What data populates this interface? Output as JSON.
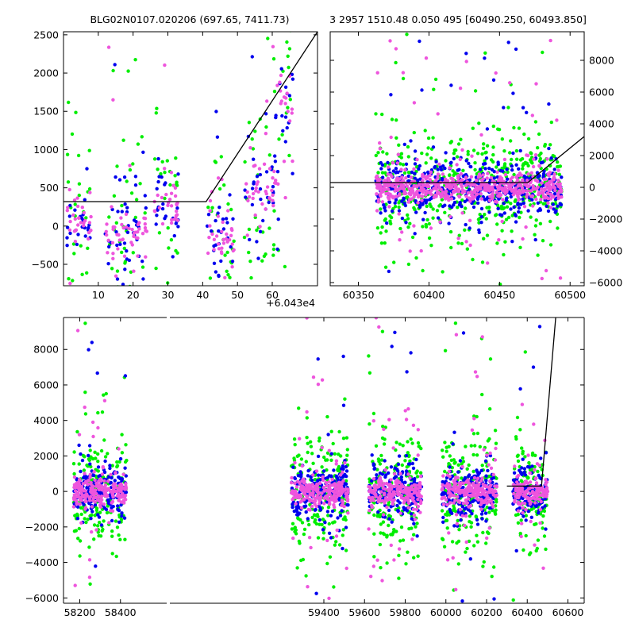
{
  "title": {
    "left": "BLG02N0107.020206 (697.65, 7411.73)",
    "right": "3 2957 1510.48 0.050 495 [60490.250, 60493.850]"
  },
  "colors": {
    "series_green": "#00ee00",
    "series_blue": "#0000ee",
    "series_magenta": "#ee55dd",
    "axes": "#000000",
    "model": "#000000"
  },
  "chart_data": [
    {
      "id": "zoom",
      "type": "scatter",
      "xlim": [
        0,
        73
      ],
      "ylim": [
        -780,
        2540
      ],
      "x_offset_label": "+6.043e4",
      "x_ticks": [
        10,
        20,
        30,
        40,
        50,
        60
      ],
      "x_tick_labels": [
        "10",
        "20",
        "30",
        "40",
        "50",
        "60"
      ],
      "y_ticks": [
        -500,
        0,
        500,
        1000,
        1500,
        2000,
        2500
      ],
      "y_tick_labels": [
        "−500",
        "0",
        "500",
        "1000",
        "1500",
        "2000",
        "2500"
      ],
      "y_axis_side": "left",
      "model_line": [
        [
          0,
          320
        ],
        [
          41,
          320
        ],
        [
          73,
          2540
        ]
      ],
      "observing_groups": [
        {
          "x_range": [
            1,
            8
          ],
          "y_center": 100,
          "y_spread": 600
        },
        {
          "x_range": [
            12,
            24
          ],
          "y_center": -80,
          "y_spread": 600
        },
        {
          "x_range": [
            26,
            33
          ],
          "y_center": 240,
          "y_spread": 520
        },
        {
          "x_range": [
            41,
            49
          ],
          "y_center": -160,
          "y_spread": 560
        },
        {
          "x_range": [
            52,
            62
          ],
          "y_center": 470,
          "y_spread": 850
        },
        {
          "x_range": [
            62,
            66
          ],
          "y_center": 1700,
          "y_spread": 700
        }
      ],
      "series_colors": [
        "#00ee00",
        "#0000ee",
        "#ee55dd"
      ]
    },
    {
      "id": "season",
      "type": "scatter",
      "xlim": [
        60330,
        60510
      ],
      "ylim": [
        -6200,
        9800
      ],
      "x_ticks": [
        60350,
        60400,
        60450,
        60500
      ],
      "x_tick_labels": [
        "60350",
        "60400",
        "60450",
        "60500"
      ],
      "y_ticks": [
        -6000,
        -4000,
        -2000,
        0,
        2000,
        4000,
        6000,
        8000
      ],
      "y_tick_labels": [
        "−6000",
        "−4000",
        "−2000",
        "0",
        "2000",
        "4000",
        "6000",
        "8000"
      ],
      "y_axis_side": "right",
      "model_line": [
        [
          60330,
          300
        ],
        [
          60470,
          300
        ],
        [
          60510,
          3200
        ]
      ],
      "observing_groups": [
        {
          "x_range": [
            60362,
            60494
          ],
          "y_center": 0,
          "y_spread": 1600
        }
      ],
      "series_colors": [
        "#00ee00",
        "#0000ee",
        "#ee55dd"
      ]
    },
    {
      "id": "full",
      "type": "scatter",
      "xlim": [
        58120,
        60680
      ],
      "ylim": [
        -6300,
        9800
      ],
      "broken_x_axis_gap": [
        58460,
        59200
      ],
      "x_ticks": [
        58200,
        58400,
        59400,
        59600,
        59800,
        60000,
        60200,
        60400,
        60600
      ],
      "x_tick_labels": [
        "58200",
        "58400",
        "59400",
        "59600",
        "59800",
        "60000",
        "60200",
        "60400",
        "60600"
      ],
      "y_ticks": [
        -6000,
        -4000,
        -2000,
        0,
        2000,
        4000,
        6000,
        8000
      ],
      "y_tick_labels": [
        "−6000",
        "−4000",
        "−2000",
        "0",
        "2000",
        "4000",
        "6000",
        "8000"
      ],
      "y_axis_side": "left",
      "model_line": [
        [
          60300,
          300
        ],
        [
          60470,
          300
        ],
        [
          60540,
          9800
        ]
      ],
      "observing_groups": [
        {
          "x_range": [
            58170,
            58430
          ],
          "y_center": 0,
          "y_spread": 1500
        },
        {
          "x_range": [
            59240,
            59520
          ],
          "y_center": 0,
          "y_spread": 1500
        },
        {
          "x_range": [
            59620,
            59880
          ],
          "y_center": 0,
          "y_spread": 1500
        },
        {
          "x_range": [
            59980,
            60250
          ],
          "y_center": 0,
          "y_spread": 1500
        },
        {
          "x_range": [
            60330,
            60500
          ],
          "y_center": 0,
          "y_spread": 1500
        }
      ],
      "series_colors": [
        "#00ee00",
        "#0000ee",
        "#ee55dd"
      ]
    }
  ]
}
